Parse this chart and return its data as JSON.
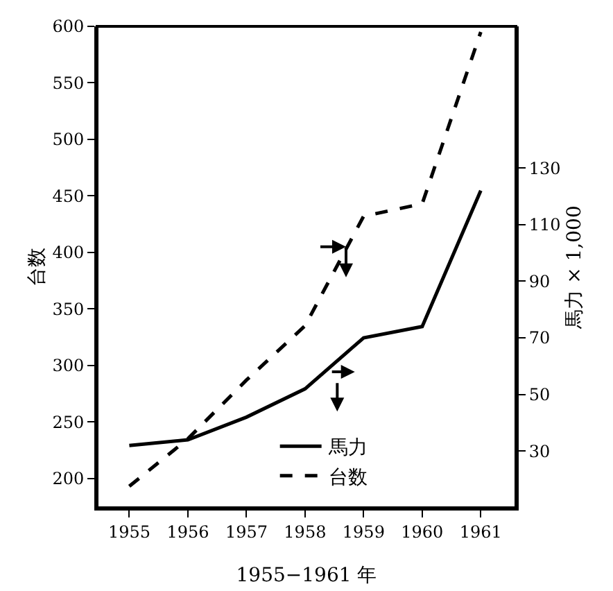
{
  "chart_data": {
    "type": "line",
    "xlabel": "1955−1961 年",
    "ylabel": "台数",
    "y2label": "馬力 × 1,000",
    "x": [
      1955,
      1956,
      1957,
      1958,
      1959,
      1960,
      1961
    ],
    "series": [
      {
        "name": "馬力",
        "color": "#000000",
        "line_style": "solid",
        "axis": "y2",
        "values": [
          32,
          34,
          42,
          52,
          70,
          74,
          122
        ]
      },
      {
        "name": "台数",
        "color": "#000000",
        "line_style": "dashed",
        "values": [
          193,
          235,
          287,
          335,
          432,
          443,
          595
        ]
      }
    ],
    "xlim": [
      1954.45,
      1961.6
    ],
    "xticks": [
      1955,
      1956,
      1957,
      1958,
      1959,
      1960,
      1961
    ],
    "ylim": [
      174,
      600
    ],
    "yticks": [
      200,
      250,
      300,
      350,
      400,
      450,
      500,
      550,
      600
    ],
    "y2lim": [
      10,
      180
    ],
    "y2ticks": [
      30,
      50,
      70,
      90,
      110,
      130
    ],
    "grid": false,
    "legend": "bottom",
    "marker": "none"
  }
}
